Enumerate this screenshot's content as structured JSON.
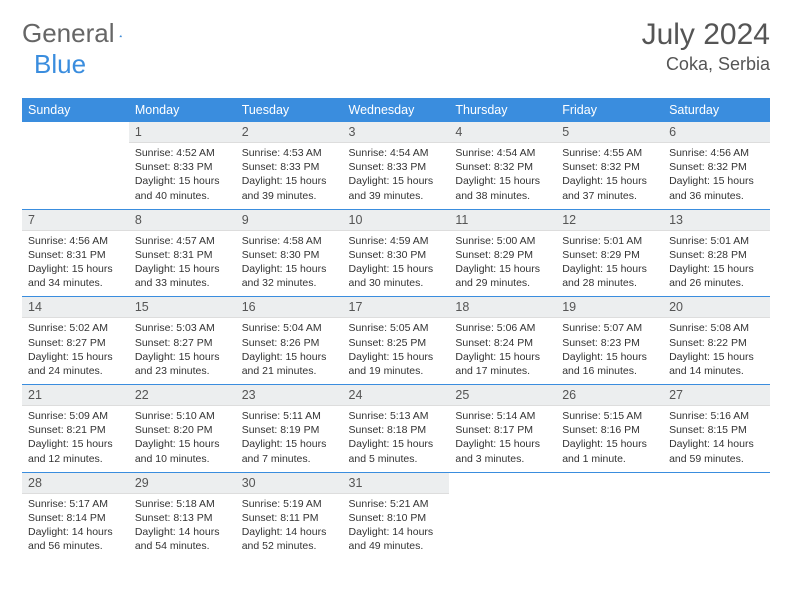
{
  "brand": {
    "part1": "General",
    "part2": "Blue"
  },
  "title": "July 2024",
  "location": "Coka, Serbia",
  "colors": {
    "accent": "#3a8dde",
    "daynum_bg": "#eceeef",
    "text": "#333333",
    "header_text": "#555555"
  },
  "weekdays": [
    "Sunday",
    "Monday",
    "Tuesday",
    "Wednesday",
    "Thursday",
    "Friday",
    "Saturday"
  ],
  "layout": {
    "first_weekday_index": 1,
    "days_in_month": 31
  },
  "days": {
    "1": {
      "sunrise": "4:52 AM",
      "sunset": "8:33 PM",
      "daylight": "15 hours and 40 minutes."
    },
    "2": {
      "sunrise": "4:53 AM",
      "sunset": "8:33 PM",
      "daylight": "15 hours and 39 minutes."
    },
    "3": {
      "sunrise": "4:54 AM",
      "sunset": "8:33 PM",
      "daylight": "15 hours and 39 minutes."
    },
    "4": {
      "sunrise": "4:54 AM",
      "sunset": "8:32 PM",
      "daylight": "15 hours and 38 minutes."
    },
    "5": {
      "sunrise": "4:55 AM",
      "sunset": "8:32 PM",
      "daylight": "15 hours and 37 minutes."
    },
    "6": {
      "sunrise": "4:56 AM",
      "sunset": "8:32 PM",
      "daylight": "15 hours and 36 minutes."
    },
    "7": {
      "sunrise": "4:56 AM",
      "sunset": "8:31 PM",
      "daylight": "15 hours and 34 minutes."
    },
    "8": {
      "sunrise": "4:57 AM",
      "sunset": "8:31 PM",
      "daylight": "15 hours and 33 minutes."
    },
    "9": {
      "sunrise": "4:58 AM",
      "sunset": "8:30 PM",
      "daylight": "15 hours and 32 minutes."
    },
    "10": {
      "sunrise": "4:59 AM",
      "sunset": "8:30 PM",
      "daylight": "15 hours and 30 minutes."
    },
    "11": {
      "sunrise": "5:00 AM",
      "sunset": "8:29 PM",
      "daylight": "15 hours and 29 minutes."
    },
    "12": {
      "sunrise": "5:01 AM",
      "sunset": "8:29 PM",
      "daylight": "15 hours and 28 minutes."
    },
    "13": {
      "sunrise": "5:01 AM",
      "sunset": "8:28 PM",
      "daylight": "15 hours and 26 minutes."
    },
    "14": {
      "sunrise": "5:02 AM",
      "sunset": "8:27 PM",
      "daylight": "15 hours and 24 minutes."
    },
    "15": {
      "sunrise": "5:03 AM",
      "sunset": "8:27 PM",
      "daylight": "15 hours and 23 minutes."
    },
    "16": {
      "sunrise": "5:04 AM",
      "sunset": "8:26 PM",
      "daylight": "15 hours and 21 minutes."
    },
    "17": {
      "sunrise": "5:05 AM",
      "sunset": "8:25 PM",
      "daylight": "15 hours and 19 minutes."
    },
    "18": {
      "sunrise": "5:06 AM",
      "sunset": "8:24 PM",
      "daylight": "15 hours and 17 minutes."
    },
    "19": {
      "sunrise": "5:07 AM",
      "sunset": "8:23 PM",
      "daylight": "15 hours and 16 minutes."
    },
    "20": {
      "sunrise": "5:08 AM",
      "sunset": "8:22 PM",
      "daylight": "15 hours and 14 minutes."
    },
    "21": {
      "sunrise": "5:09 AM",
      "sunset": "8:21 PM",
      "daylight": "15 hours and 12 minutes."
    },
    "22": {
      "sunrise": "5:10 AM",
      "sunset": "8:20 PM",
      "daylight": "15 hours and 10 minutes."
    },
    "23": {
      "sunrise": "5:11 AM",
      "sunset": "8:19 PM",
      "daylight": "15 hours and 7 minutes."
    },
    "24": {
      "sunrise": "5:13 AM",
      "sunset": "8:18 PM",
      "daylight": "15 hours and 5 minutes."
    },
    "25": {
      "sunrise": "5:14 AM",
      "sunset": "8:17 PM",
      "daylight": "15 hours and 3 minutes."
    },
    "26": {
      "sunrise": "5:15 AM",
      "sunset": "8:16 PM",
      "daylight": "15 hours and 1 minute."
    },
    "27": {
      "sunrise": "5:16 AM",
      "sunset": "8:15 PM",
      "daylight": "14 hours and 59 minutes."
    },
    "28": {
      "sunrise": "5:17 AM",
      "sunset": "8:14 PM",
      "daylight": "14 hours and 56 minutes."
    },
    "29": {
      "sunrise": "5:18 AM",
      "sunset": "8:13 PM",
      "daylight": "14 hours and 54 minutes."
    },
    "30": {
      "sunrise": "5:19 AM",
      "sunset": "8:11 PM",
      "daylight": "14 hours and 52 minutes."
    },
    "31": {
      "sunrise": "5:21 AM",
      "sunset": "8:10 PM",
      "daylight": "14 hours and 49 minutes."
    }
  },
  "labels": {
    "sunrise": "Sunrise:",
    "sunset": "Sunset:",
    "daylight": "Daylight:"
  }
}
